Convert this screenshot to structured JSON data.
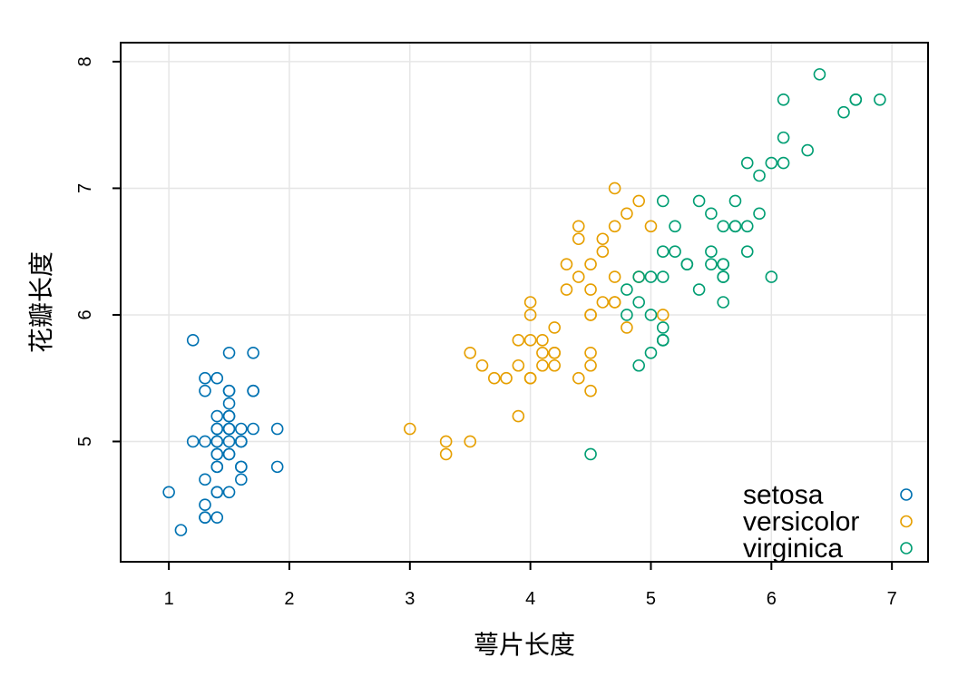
{
  "chart_data": {
    "type": "scatter",
    "xlabel": "萼片长度",
    "ylabel": "花瓣长度",
    "xlim": [
      0.6,
      7.3
    ],
    "ylim": [
      4.05,
      8.15
    ],
    "x_ticks": [
      1,
      2,
      3,
      4,
      5,
      6,
      7
    ],
    "y_ticks": [
      5,
      6,
      7,
      8
    ],
    "grid": true,
    "legend_position": "bottom-right",
    "series": [
      {
        "name": "setosa",
        "color": "#0072B2",
        "points": [
          [
            1.4,
            5.1
          ],
          [
            1.4,
            4.9
          ],
          [
            1.3,
            4.7
          ],
          [
            1.5,
            4.6
          ],
          [
            1.4,
            5.0
          ],
          [
            1.7,
            5.4
          ],
          [
            1.4,
            4.6
          ],
          [
            1.5,
            5.0
          ],
          [
            1.4,
            4.4
          ],
          [
            1.5,
            4.9
          ],
          [
            1.5,
            5.4
          ],
          [
            1.6,
            4.8
          ],
          [
            1.4,
            4.8
          ],
          [
            1.1,
            4.3
          ],
          [
            1.2,
            5.8
          ],
          [
            1.5,
            5.7
          ],
          [
            1.3,
            5.4
          ],
          [
            1.4,
            5.1
          ],
          [
            1.7,
            5.7
          ],
          [
            1.5,
            5.1
          ],
          [
            1.7,
            5.4
          ],
          [
            1.5,
            5.1
          ],
          [
            1.0,
            4.6
          ],
          [
            1.7,
            5.1
          ],
          [
            1.9,
            4.8
          ],
          [
            1.6,
            5.0
          ],
          [
            1.6,
            5.0
          ],
          [
            1.5,
            5.2
          ],
          [
            1.4,
            5.2
          ],
          [
            1.6,
            4.7
          ],
          [
            1.6,
            4.8
          ],
          [
            1.5,
            5.4
          ],
          [
            1.5,
            5.2
          ],
          [
            1.4,
            5.5
          ],
          [
            1.5,
            4.9
          ],
          [
            1.2,
            5.0
          ],
          [
            1.3,
            5.5
          ],
          [
            1.4,
            4.9
          ],
          [
            1.3,
            4.4
          ],
          [
            1.5,
            5.1
          ],
          [
            1.3,
            5.0
          ],
          [
            1.3,
            4.5
          ],
          [
            1.3,
            4.4
          ],
          [
            1.6,
            5.0
          ],
          [
            1.9,
            5.1
          ],
          [
            1.4,
            4.8
          ],
          [
            1.6,
            5.1
          ],
          [
            1.4,
            4.6
          ],
          [
            1.5,
            5.3
          ],
          [
            1.4,
            5.0
          ]
        ]
      },
      {
        "name": "versicolor",
        "color": "#E69F00",
        "points": [
          [
            4.7,
            7.0
          ],
          [
            4.5,
            6.4
          ],
          [
            4.9,
            6.9
          ],
          [
            4.0,
            5.5
          ],
          [
            4.6,
            6.5
          ],
          [
            4.5,
            5.7
          ],
          [
            4.7,
            6.3
          ],
          [
            3.3,
            4.9
          ],
          [
            4.6,
            6.6
          ],
          [
            3.9,
            5.2
          ],
          [
            3.5,
            5.0
          ],
          [
            4.2,
            5.9
          ],
          [
            4.0,
            6.0
          ],
          [
            4.7,
            6.1
          ],
          [
            3.6,
            5.6
          ],
          [
            4.4,
            6.7
          ],
          [
            4.5,
            5.6
          ],
          [
            4.1,
            5.8
          ],
          [
            4.5,
            6.2
          ],
          [
            3.9,
            5.6
          ],
          [
            4.8,
            5.9
          ],
          [
            4.0,
            6.1
          ],
          [
            4.9,
            6.3
          ],
          [
            4.7,
            6.1
          ],
          [
            4.3,
            6.4
          ],
          [
            4.4,
            6.6
          ],
          [
            4.8,
            6.8
          ],
          [
            5.0,
            6.7
          ],
          [
            4.5,
            6.0
          ],
          [
            3.5,
            5.7
          ],
          [
            3.8,
            5.5
          ],
          [
            3.7,
            5.5
          ],
          [
            3.9,
            5.8
          ],
          [
            5.1,
            6.0
          ],
          [
            4.5,
            5.4
          ],
          [
            4.5,
            6.0
          ],
          [
            4.7,
            6.7
          ],
          [
            4.4,
            6.3
          ],
          [
            4.1,
            5.6
          ],
          [
            4.0,
            5.5
          ],
          [
            4.4,
            5.5
          ],
          [
            4.6,
            6.1
          ],
          [
            4.0,
            5.8
          ],
          [
            3.3,
            5.0
          ],
          [
            4.2,
            5.6
          ],
          [
            4.2,
            5.7
          ],
          [
            4.2,
            5.7
          ],
          [
            4.3,
            6.2
          ],
          [
            3.0,
            5.1
          ],
          [
            4.1,
            5.7
          ]
        ]
      },
      {
        "name": "virginica",
        "color": "#009E73",
        "points": [
          [
            6.0,
            6.3
          ],
          [
            5.1,
            5.8
          ],
          [
            5.9,
            7.1
          ],
          [
            5.6,
            6.3
          ],
          [
            5.8,
            6.5
          ],
          [
            6.6,
            7.6
          ],
          [
            4.5,
            4.9
          ],
          [
            6.3,
            7.3
          ],
          [
            5.8,
            6.7
          ],
          [
            6.1,
            7.2
          ],
          [
            5.1,
            6.5
          ],
          [
            5.3,
            6.4
          ],
          [
            5.5,
            6.8
          ],
          [
            5.0,
            5.7
          ],
          [
            5.1,
            5.8
          ],
          [
            5.3,
            6.4
          ],
          [
            5.5,
            6.5
          ],
          [
            6.7,
            7.7
          ],
          [
            6.9,
            7.7
          ],
          [
            5.0,
            6.0
          ],
          [
            5.7,
            6.9
          ],
          [
            4.9,
            5.6
          ],
          [
            6.7,
            7.7
          ],
          [
            4.9,
            6.3
          ],
          [
            5.7,
            6.7
          ],
          [
            6.0,
            7.2
          ],
          [
            4.8,
            6.2
          ],
          [
            4.9,
            6.1
          ],
          [
            5.6,
            6.4
          ],
          [
            5.8,
            7.2
          ],
          [
            6.1,
            7.4
          ],
          [
            6.4,
            7.9
          ],
          [
            5.6,
            6.4
          ],
          [
            5.1,
            6.3
          ],
          [
            5.6,
            6.1
          ],
          [
            6.1,
            7.7
          ],
          [
            5.6,
            6.3
          ],
          [
            5.5,
            6.4
          ],
          [
            4.8,
            6.0
          ],
          [
            5.4,
            6.9
          ],
          [
            5.6,
            6.7
          ],
          [
            5.1,
            6.9
          ],
          [
            5.1,
            5.8
          ],
          [
            5.9,
            6.8
          ],
          [
            5.7,
            6.7
          ],
          [
            5.2,
            6.7
          ],
          [
            5.0,
            6.3
          ],
          [
            5.2,
            6.5
          ],
          [
            5.4,
            6.2
          ],
          [
            5.1,
            5.9
          ]
        ]
      }
    ]
  }
}
